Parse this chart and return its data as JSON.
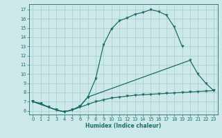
{
  "xlabel": "Humidex (Indice chaleur)",
  "bg_color": "#cce8e8",
  "grid_color": "#aacccc",
  "line_color": "#1a6b6b",
  "xlim": [
    -0.5,
    23.5
  ],
  "ylim": [
    5.6,
    17.6
  ],
  "xticks": [
    0,
    1,
    2,
    3,
    4,
    5,
    6,
    7,
    8,
    9,
    10,
    11,
    12,
    13,
    14,
    15,
    16,
    17,
    18,
    19,
    20,
    21,
    22,
    23
  ],
  "yticks": [
    6,
    7,
    8,
    9,
    10,
    11,
    12,
    13,
    14,
    15,
    16,
    17
  ],
  "line1_x": [
    0,
    1,
    2,
    3,
    4,
    5,
    6,
    7,
    8,
    9,
    10,
    11,
    12,
    13,
    14,
    15,
    16,
    17,
    18,
    19
  ],
  "line1_y": [
    7.0,
    6.8,
    6.4,
    6.1,
    5.9,
    6.1,
    6.5,
    7.5,
    9.5,
    13.2,
    14.9,
    15.8,
    16.1,
    16.5,
    16.7,
    17.0,
    16.8,
    16.4,
    15.1,
    13.0
  ],
  "line2_x": [
    0,
    3,
    4,
    5,
    6,
    7,
    20,
    21,
    22,
    23
  ],
  "line2_y": [
    7.0,
    6.1,
    5.9,
    6.1,
    6.5,
    7.5,
    11.5,
    10.0,
    9.0,
    8.2
  ],
  "line3_x": [
    0,
    1,
    2,
    3,
    4,
    5,
    6,
    7,
    8,
    9,
    10,
    11,
    12,
    13,
    14,
    15,
    16,
    17,
    18,
    19,
    20,
    21,
    22,
    23
  ],
  "line3_y": [
    7.0,
    6.8,
    6.4,
    6.1,
    5.9,
    6.1,
    6.4,
    6.7,
    7.0,
    7.2,
    7.4,
    7.5,
    7.6,
    7.7,
    7.75,
    7.8,
    7.85,
    7.9,
    7.95,
    8.0,
    8.05,
    8.1,
    8.15,
    8.2
  ],
  "xlabel_fontsize": 5.5,
  "tick_fontsize": 4.8
}
